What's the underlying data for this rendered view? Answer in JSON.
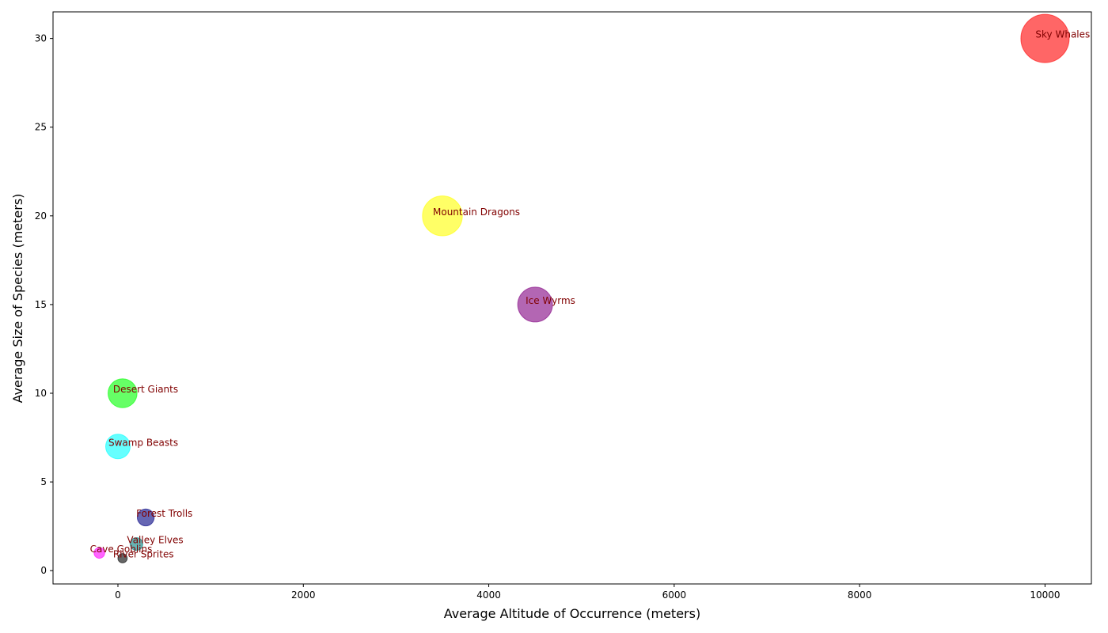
{
  "chart_data": {
    "type": "scatter",
    "title": "",
    "xlabel": "Average Altitude of Occurrence (meters)",
    "ylabel": "Average Size of Species (meters)",
    "xlim": [
      -700,
      10500
    ],
    "ylim": [
      -0.75,
      31.5
    ],
    "xticks": [
      0,
      2000,
      4000,
      6000,
      8000,
      10000
    ],
    "yticks": [
      0,
      5,
      10,
      15,
      20,
      25,
      30
    ],
    "grid": false,
    "label_color": "#800000",
    "series": [
      {
        "label": "Sky Whales",
        "x": 10000,
        "y": 30,
        "color": "#ff0000"
      },
      {
        "label": "Mountain Dragons",
        "x": 3500,
        "y": 20,
        "color": "#ffff00"
      },
      {
        "label": "Ice Wyrms",
        "x": 4500,
        "y": 15,
        "color": "#800080"
      },
      {
        "label": "Desert Giants",
        "x": 50,
        "y": 10,
        "color": "#00ff00"
      },
      {
        "label": "Swamp Beasts",
        "x": 0,
        "y": 7,
        "color": "#00ffff"
      },
      {
        "label": "Forest Trolls",
        "x": 300,
        "y": 3,
        "color": "#000080"
      },
      {
        "label": "Valley Elves",
        "x": 200,
        "y": 1.5,
        "color": "#008080"
      },
      {
        "label": "Cave Goblins",
        "x": -200,
        "y": 1,
        "color": "#ff00ff"
      },
      {
        "label": "River Sprites",
        "x": 50,
        "y": 0.7,
        "color": "#000000"
      }
    ]
  }
}
